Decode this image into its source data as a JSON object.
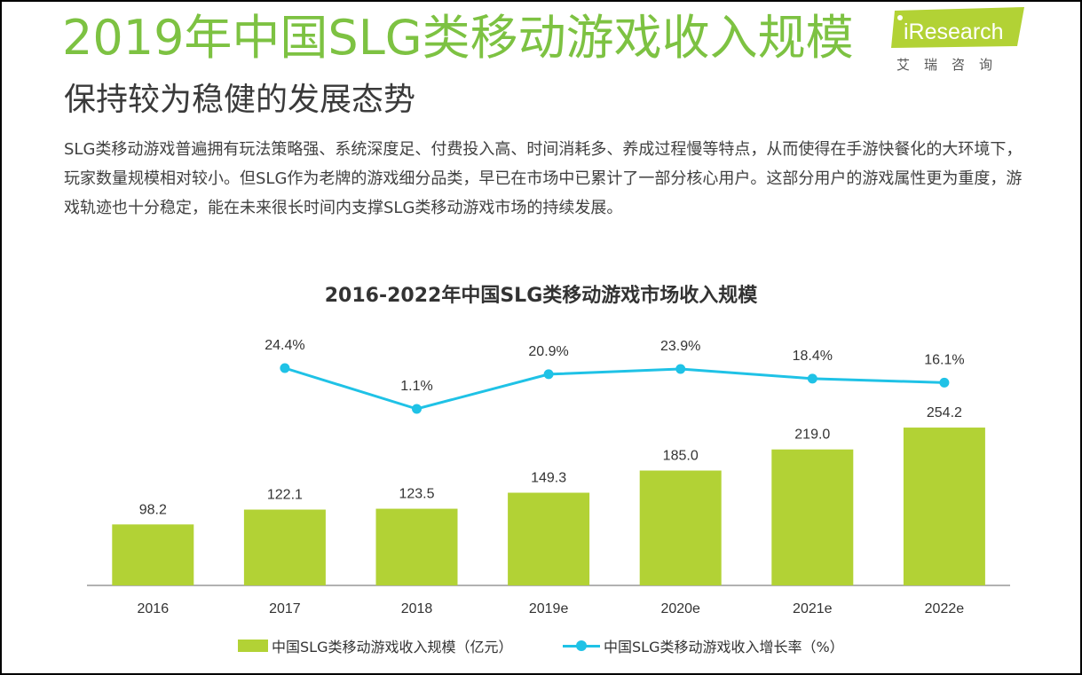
{
  "header": {
    "title": "2019年中国SLG类移动游戏收入规模",
    "subtitle": "保持较为稳健的发展态势",
    "paragraph": "SLG类移动游戏普遍拥有玩法策略强、系统深度足、付费投入高、时间消耗多、养成过程慢等特点，从而使得在手游快餐化的大环境下，玩家数量规模相对较小。但SLG作为老牌的游戏细分品类，早已在市场中已累计了一部分核心用户。这部分用户的游戏属性更为重度，游戏轨迹也十分稳定，能在未来很长时间内支撑SLG类移动游戏市场的持续发展。"
  },
  "logo": {
    "name": "iResearch",
    "chinese": "艾瑞咨询",
    "color": "#b2d235"
  },
  "chart_data": {
    "type": "bar",
    "title": "2016-2022年中国SLG类移动游戏市场收入规模",
    "categories": [
      "2016",
      "2017",
      "2018",
      "2019e",
      "2020e",
      "2021e",
      "2022e"
    ],
    "series": [
      {
        "name": "中国SLG类移动游戏收入规模（亿元）",
        "type": "bar",
        "color": "#b2d235",
        "values": [
          98.2,
          122.1,
          123.5,
          149.3,
          185.0,
          219.0,
          254.2
        ],
        "labels": [
          "98.2",
          "122.1",
          "123.5",
          "149.3",
          "185.0",
          "219.0",
          "254.2"
        ]
      },
      {
        "name": "中国SLG类移动游戏收入增长率（%）",
        "type": "line",
        "color": "#1fc2e6",
        "values": [
          null,
          24.4,
          1.1,
          20.9,
          23.9,
          18.4,
          16.1
        ],
        "labels": [
          "",
          "24.4%",
          "1.1%",
          "20.9%",
          "23.9%",
          "18.4%",
          "16.1%"
        ]
      }
    ],
    "legend_position": "bottom",
    "grid": false
  }
}
